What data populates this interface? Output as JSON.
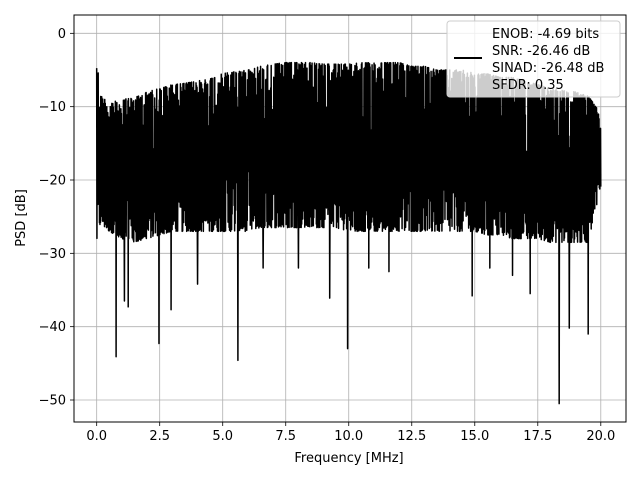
{
  "chart_data": {
    "type": "line",
    "xlabel": "Frequency [MHz]",
    "ylabel": "PSD [dB]",
    "xlim": [
      -0.9,
      21.0
    ],
    "ylim": [
      -53.0,
      2.5
    ],
    "xticks": [
      0.0,
      2.5,
      5.0,
      7.5,
      10.0,
      12.5,
      15.0,
      17.5,
      20.0
    ],
    "xtick_labels": [
      "0.0",
      "2.5",
      "5.0",
      "7.5",
      "10.0",
      "12.5",
      "15.0",
      "17.5",
      "20.0"
    ],
    "yticks": [
      0,
      -10,
      -20,
      -30,
      -40,
      -50
    ],
    "ytick_labels": [
      "0",
      "−10",
      "−20",
      "−30",
      "−40",
      "−50"
    ],
    "grid": true,
    "legend_position": "top-right",
    "legend": [
      "ENOB: -4.69 bits",
      "SNR: -26.46 dB",
      "SINAD: -26.48 dB",
      "SFDR: 0.35"
    ],
    "series": [
      {
        "color": "#000000",
        "envelope": {
          "x": [
            0.0,
            0.05,
            0.15,
            0.5,
            1.0,
            1.5,
            2.0,
            2.5,
            3.0,
            3.5,
            4.0,
            4.5,
            5.0,
            5.5,
            6.0,
            6.5,
            7.0,
            7.5,
            8.0,
            8.5,
            9.0,
            9.5,
            10.0,
            10.5,
            11.0,
            11.5,
            12.0,
            12.5,
            13.0,
            13.5,
            14.0,
            14.5,
            15.0,
            15.5,
            16.0,
            16.5,
            17.0,
            17.5,
            18.0,
            18.5,
            19.0,
            19.5,
            20.0
          ],
          "upper": [
            -0.3,
            -5.0,
            -8.5,
            -9.5,
            -9.0,
            -8.8,
            -8.0,
            -7.5,
            -7.0,
            -6.8,
            -6.5,
            -6.2,
            -5.5,
            -5.2,
            -5.0,
            -4.5,
            -4.2,
            -4.0,
            -4.0,
            -4.0,
            -4.2,
            -4.2,
            -4.2,
            -4.0,
            -4.0,
            -4.0,
            -4.0,
            -4.5,
            -4.5,
            -5.0,
            -5.0,
            -5.0,
            -5.5,
            -5.5,
            -6.0,
            -6.0,
            -6.5,
            -7.0,
            -7.5,
            -7.8,
            -8.0,
            -8.5,
            -11.0
          ],
          "lower": [
            -29.0,
            -27.0,
            -26.0,
            -27.0,
            -28.0,
            -28.5,
            -28.0,
            -27.5,
            -27.0,
            -27.0,
            -27.0,
            -27.0,
            -27.0,
            -27.0,
            -27.0,
            -26.5,
            -26.5,
            -26.5,
            -26.5,
            -26.5,
            -26.5,
            -26.5,
            -27.0,
            -27.0,
            -27.0,
            -27.0,
            -27.0,
            -27.0,
            -27.0,
            -27.0,
            -27.0,
            -27.0,
            -27.0,
            -27.5,
            -27.5,
            -28.0,
            -28.0,
            -28.0,
            -28.5,
            -28.5,
            -28.5,
            -28.5,
            -21.0
          ]
        },
        "deep_dips": [
          {
            "x": 0.77,
            "y": -44.1
          },
          {
            "x": 1.1,
            "y": -36.5
          },
          {
            "x": 1.25,
            "y": -37.3
          },
          {
            "x": 2.47,
            "y": -42.3
          },
          {
            "x": 2.95,
            "y": -37.7
          },
          {
            "x": 4.0,
            "y": -34.2
          },
          {
            "x": 5.6,
            "y": -44.6
          },
          {
            "x": 6.6,
            "y": -32.0
          },
          {
            "x": 8.0,
            "y": -32.0
          },
          {
            "x": 9.24,
            "y": -36.1
          },
          {
            "x": 9.95,
            "y": -43.0
          },
          {
            "x": 10.8,
            "y": -32.0
          },
          {
            "x": 11.6,
            "y": -32.5
          },
          {
            "x": 14.9,
            "y": -35.8
          },
          {
            "x": 15.6,
            "y": -32.0
          },
          {
            "x": 16.5,
            "y": -33.0
          },
          {
            "x": 17.2,
            "y": -35.5
          },
          {
            "x": 18.35,
            "y": -50.5
          },
          {
            "x": 18.75,
            "y": -40.2
          },
          {
            "x": 19.5,
            "y": -41.0
          }
        ]
      }
    ]
  }
}
